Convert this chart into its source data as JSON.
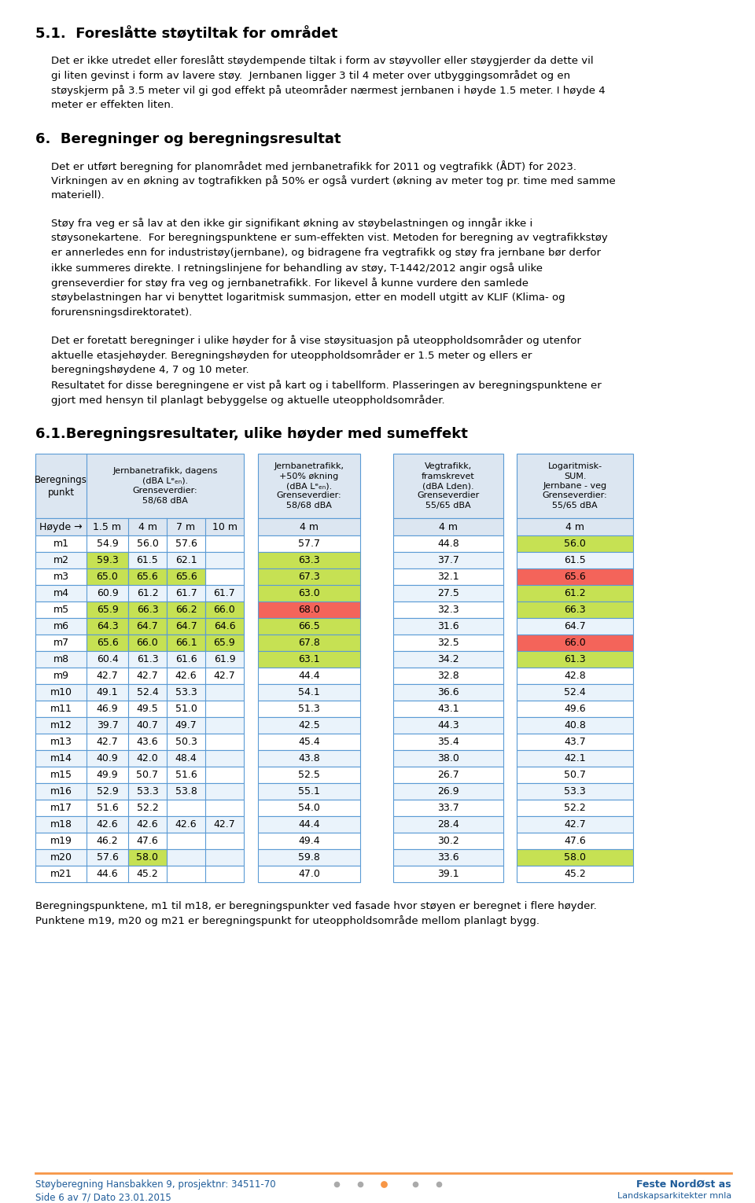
{
  "title_51": "5.1.  Foreslåtte støytiltak for området",
  "para_51_lines": [
    "Det er ikke utredet eller foreslått støydempende tiltak i form av støyvoller eller støygjerder da dette vil",
    "gi liten gevinst i form av lavere støy.  Jernbanen ligger 3 til 4 meter over utbyggingsområdet og en",
    "støyskjerm på 3.5 meter vil gi god effekt på uteområder nærmest jernbanen i høyde 1.5 meter. I høyde 4",
    "meter er effekten liten."
  ],
  "title_6": "6.  Beregninger og beregningsresultat",
  "para_6a_lines": [
    "Det er utført beregning for planområdet med jernbanetrafikk for 2011 og vegtrafikk (ÅDT) for 2023.",
    "Virkningen av en økning av togtrafikken på 50% er også vurdert (økning av meter tog pr. time med samme",
    "materiell)."
  ],
  "para_6b_lines": [
    "Støy fra veg er så lav at den ikke gir signifikant økning av støybelastningen og inngår ikke i",
    "støysonekartene.  For beregningspunktene er sum-effekten vist. Metoden for beregning av vegtrafikkstøy",
    "er annerledes enn for industristøy(jernbane), og bidragene fra vegtrafikk og støy fra jernbane bør derfor",
    "ikke summeres direkte. I retningslinjene for behandling av støy, T-1442/2012 angir også ulike",
    "grenseverdier for støy fra veg og jernbanetrafikk. For likevel å kunne vurdere den samlede",
    "støybelastningen har vi benyttet logaritmisk summasjon, etter en modell utgitt av KLIF (Klima- og",
    "forurensningsdirektoratet)."
  ],
  "para_6c_lines": [
    "Det er foretatt beregninger i ulike høyder for å vise støysituasjon på uteoppholdsområder og utenfor",
    "aktuelle etasjehøyder. Beregningshøyden for uteoppholdsområder er 1.5 meter og ellers er",
    "beregningshøydene 4, 7 og 10 meter.",
    "Resultatet for disse beregningene er vist på kart og i tabellform. Plasseringen av beregningspunktene er",
    "gjort med hensyn til planlagt bebyggelse og aktuelle uteoppholdsområder."
  ],
  "title_61": "6.1.Beregningsresultater, ulike høyder med sumeffekt",
  "footer_note_lines": [
    "Beregningspunktene, m1 til m18, er beregningspunkter ved fasade hvor støyen er beregnet i flere høyder.",
    "Punktene m19, m20 og m21 er beregningspunkt for uteoppholdsområde mellom planlagt bygg."
  ],
  "footer_left1": "Støyberegning Hansbakken 9, prosjektnr: 34511-70",
  "footer_left2": "Side 6 av 7/ Dato 23.01.2015",
  "footer_right1": "Feste NordØst as",
  "footer_right2": "Landskapsarkitekter mnla",
  "bg_color": "#ffffff",
  "table_border": "#5b9bd5",
  "table_header_bg": "#dce6f1",
  "yellow_green": "#c6e153",
  "red_highlight": "#f4645a",
  "footer_line_color": "#f79646",
  "footer_text_color": "#1f5c99",
  "rows": [
    {
      "pt": "m1",
      "v1": "54.9",
      "v2": "56.0",
      "v3": "57.6",
      "v4": "",
      "v5": "57.7",
      "v6": "44.8",
      "v7": "56.0",
      "hl1": false,
      "hl2": false,
      "hl3": false,
      "hl4": false,
      "hl5": false,
      "red5": false,
      "hl7": true,
      "red7": false
    },
    {
      "pt": "m2",
      "v1": "59.3",
      "v2": "61.5",
      "v3": "62.1",
      "v4": "",
      "v5": "63.3",
      "v6": "37.7",
      "v7": "61.5",
      "hl1": true,
      "hl2": false,
      "hl3": false,
      "hl4": false,
      "hl5": true,
      "red5": false,
      "hl7": false,
      "red7": false
    },
    {
      "pt": "m3",
      "v1": "65.0",
      "v2": "65.6",
      "v3": "65.6",
      "v4": "",
      "v5": "67.3",
      "v6": "32.1",
      "v7": "65.6",
      "hl1": true,
      "hl2": true,
      "hl3": true,
      "hl4": false,
      "hl5": true,
      "red5": false,
      "hl7": false,
      "red7": true
    },
    {
      "pt": "m4",
      "v1": "60.9",
      "v2": "61.2",
      "v3": "61.7",
      "v4": "61.7",
      "v5": "63.0",
      "v6": "27.5",
      "v7": "61.2",
      "hl1": false,
      "hl2": false,
      "hl3": false,
      "hl4": false,
      "hl5": true,
      "red5": false,
      "hl7": true,
      "red7": false
    },
    {
      "pt": "m5",
      "v1": "65.9",
      "v2": "66.3",
      "v3": "66.2",
      "v4": "66.0",
      "v5": "68.0",
      "v6": "32.3",
      "v7": "66.3",
      "hl1": true,
      "hl2": true,
      "hl3": true,
      "hl4": true,
      "hl5": false,
      "red5": true,
      "hl7": true,
      "red7": false
    },
    {
      "pt": "m6",
      "v1": "64.3",
      "v2": "64.7",
      "v3": "64.7",
      "v4": "64.6",
      "v5": "66.5",
      "v6": "31.6",
      "v7": "64.7",
      "hl1": true,
      "hl2": true,
      "hl3": true,
      "hl4": true,
      "hl5": true,
      "red5": false,
      "hl7": false,
      "red7": false
    },
    {
      "pt": "m7",
      "v1": "65.6",
      "v2": "66.0",
      "v3": "66.1",
      "v4": "65.9",
      "v5": "67.8",
      "v6": "32.5",
      "v7": "66.0",
      "hl1": true,
      "hl2": true,
      "hl3": true,
      "hl4": true,
      "hl5": true,
      "red5": false,
      "hl7": false,
      "red7": true
    },
    {
      "pt": "m8",
      "v1": "60.4",
      "v2": "61.3",
      "v3": "61.6",
      "v4": "61.9",
      "v5": "63.1",
      "v6": "34.2",
      "v7": "61.3",
      "hl1": false,
      "hl2": false,
      "hl3": false,
      "hl4": false,
      "hl5": true,
      "red5": false,
      "hl7": true,
      "red7": false
    },
    {
      "pt": "m9",
      "v1": "42.7",
      "v2": "42.7",
      "v3": "42.6",
      "v4": "42.7",
      "v5": "44.4",
      "v6": "32.8",
      "v7": "42.8",
      "hl1": false,
      "hl2": false,
      "hl3": false,
      "hl4": false,
      "hl5": false,
      "red5": false,
      "hl7": false,
      "red7": false
    },
    {
      "pt": "m10",
      "v1": "49.1",
      "v2": "52.4",
      "v3": "53.3",
      "v4": "",
      "v5": "54.1",
      "v6": "36.6",
      "v7": "52.4",
      "hl1": false,
      "hl2": false,
      "hl3": false,
      "hl4": false,
      "hl5": false,
      "red5": false,
      "hl7": false,
      "red7": false
    },
    {
      "pt": "m11",
      "v1": "46.9",
      "v2": "49.5",
      "v3": "51.0",
      "v4": "",
      "v5": "51.3",
      "v6": "43.1",
      "v7": "49.6",
      "hl1": false,
      "hl2": false,
      "hl3": false,
      "hl4": false,
      "hl5": false,
      "red5": false,
      "hl7": false,
      "red7": false
    },
    {
      "pt": "m12",
      "v1": "39.7",
      "v2": "40.7",
      "v3": "49.7",
      "v4": "",
      "v5": "42.5",
      "v6": "44.3",
      "v7": "40.8",
      "hl1": false,
      "hl2": false,
      "hl3": false,
      "hl4": false,
      "hl5": false,
      "red5": false,
      "hl7": false,
      "red7": false
    },
    {
      "pt": "m13",
      "v1": "42.7",
      "v2": "43.6",
      "v3": "50.3",
      "v4": "",
      "v5": "45.4",
      "v6": "35.4",
      "v7": "43.7",
      "hl1": false,
      "hl2": false,
      "hl3": false,
      "hl4": false,
      "hl5": false,
      "red5": false,
      "hl7": false,
      "red7": false
    },
    {
      "pt": "m14",
      "v1": "40.9",
      "v2": "42.0",
      "v3": "48.4",
      "v4": "",
      "v5": "43.8",
      "v6": "38.0",
      "v7": "42.1",
      "hl1": false,
      "hl2": false,
      "hl3": false,
      "hl4": false,
      "hl5": false,
      "red5": false,
      "hl7": false,
      "red7": false
    },
    {
      "pt": "m15",
      "v1": "49.9",
      "v2": "50.7",
      "v3": "51.6",
      "v4": "",
      "v5": "52.5",
      "v6": "26.7",
      "v7": "50.7",
      "hl1": false,
      "hl2": false,
      "hl3": false,
      "hl4": false,
      "hl5": false,
      "red5": false,
      "hl7": false,
      "red7": false
    },
    {
      "pt": "m16",
      "v1": "52.9",
      "v2": "53.3",
      "v3": "53.8",
      "v4": "",
      "v5": "55.1",
      "v6": "26.9",
      "v7": "53.3",
      "hl1": false,
      "hl2": false,
      "hl3": false,
      "hl4": false,
      "hl5": false,
      "red5": false,
      "hl7": false,
      "red7": false
    },
    {
      "pt": "m17",
      "v1": "51.6",
      "v2": "52.2",
      "v3": "",
      "v4": "",
      "v5": "54.0",
      "v6": "33.7",
      "v7": "52.2",
      "hl1": false,
      "hl2": false,
      "hl3": false,
      "hl4": false,
      "hl5": false,
      "red5": false,
      "hl7": false,
      "red7": false
    },
    {
      "pt": "m18",
      "v1": "42.6",
      "v2": "42.6",
      "v3": "42.6",
      "v4": "42.7",
      "v5": "44.4",
      "v6": "28.4",
      "v7": "42.7",
      "hl1": false,
      "hl2": false,
      "hl3": false,
      "hl4": false,
      "hl5": false,
      "red5": false,
      "hl7": false,
      "red7": false
    },
    {
      "pt": "m19",
      "v1": "46.2",
      "v2": "47.6",
      "v3": "",
      "v4": "",
      "v5": "49.4",
      "v6": "30.2",
      "v7": "47.6",
      "hl1": false,
      "hl2": false,
      "hl3": false,
      "hl4": false,
      "hl5": false,
      "red5": false,
      "hl7": false,
      "red7": false
    },
    {
      "pt": "m20",
      "v1": "57.6",
      "v2": "58.0",
      "v3": "",
      "v4": "",
      "v5": "59.8",
      "v6": "33.6",
      "v7": "58.0",
      "hl1": false,
      "hl2": true,
      "hl3": false,
      "hl4": false,
      "hl5": false,
      "red5": false,
      "hl7": true,
      "red7": false
    },
    {
      "pt": "m21",
      "v1": "44.6",
      "v2": "45.2",
      "v3": "",
      "v4": "",
      "v5": "47.0",
      "v6": "39.1",
      "v7": "45.2",
      "hl1": false,
      "hl2": false,
      "hl3": false,
      "hl4": false,
      "hl5": false,
      "red5": false,
      "hl7": false,
      "red7": false
    }
  ]
}
